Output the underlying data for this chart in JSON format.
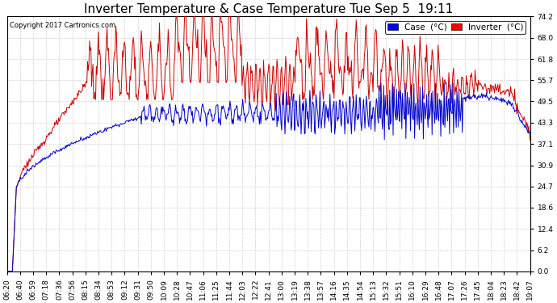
{
  "title": "Inverter Temperature & Case Temperature Tue Sep 5  19:11",
  "copyright": "Copyright 2017 Cartronics.com",
  "legend_labels": [
    "Case  (°C)",
    "Inverter  (°C)"
  ],
  "case_color": "#0000cc",
  "inverter_color": "#cc0000",
  "legend_case_color": "#0000ff",
  "legend_inv_color": "#ff0000",
  "background_color": "#ffffff",
  "grid_color": "#aaaaaa",
  "ylim": [
    0.0,
    74.2
  ],
  "yticks": [
    0.0,
    6.2,
    12.4,
    18.6,
    24.7,
    30.9,
    37.1,
    43.3,
    49.5,
    55.7,
    61.8,
    68.0,
    74.2
  ],
  "xtick_labels": [
    "06:20",
    "06:40",
    "06:59",
    "07:18",
    "07:36",
    "07:56",
    "08:15",
    "08:34",
    "08:53",
    "09:12",
    "09:31",
    "09:50",
    "10:09",
    "10:28",
    "10:47",
    "11:06",
    "11:25",
    "11:44",
    "12:03",
    "12:22",
    "12:41",
    "13:00",
    "13:19",
    "13:38",
    "13:57",
    "14:16",
    "14:35",
    "14:54",
    "15:13",
    "15:32",
    "15:51",
    "16:10",
    "16:29",
    "16:48",
    "17:07",
    "17:26",
    "17:45",
    "18:04",
    "18:23",
    "18:42",
    "19:07"
  ],
  "title_fontsize": 11,
  "tick_fontsize": 6.5,
  "legend_fontsize": 7.5,
  "figwidth": 6.9,
  "figheight": 3.75,
  "dpi": 100
}
